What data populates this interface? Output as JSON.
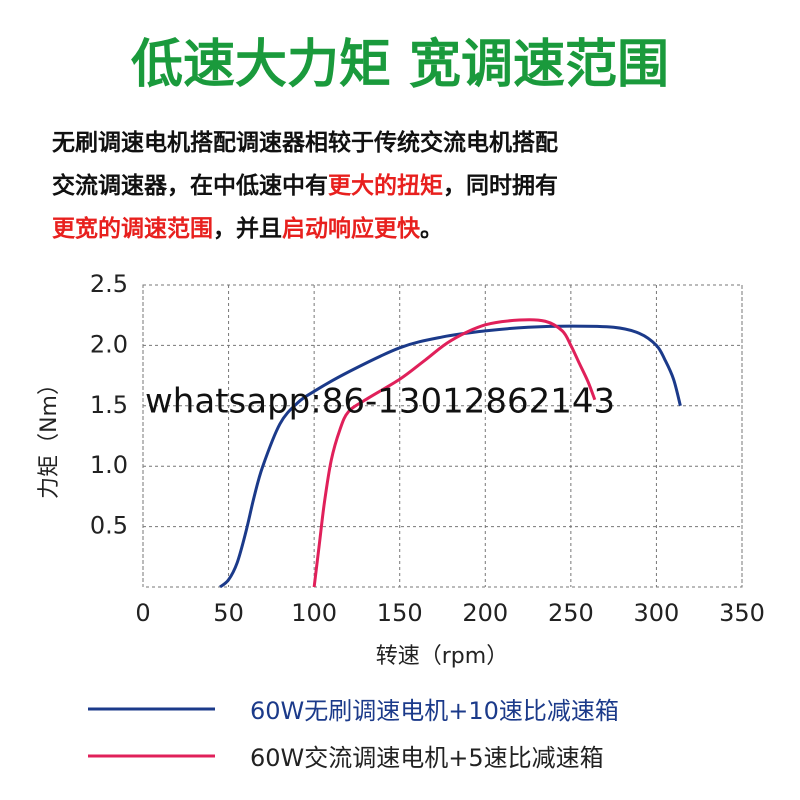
{
  "header": {
    "title": "低速大力矩 宽调速范围",
    "title_color": "#1a9a3c"
  },
  "description": [
    [
      {
        "text": "无刷调速电机搭配调速器相较于传统交流电机搭配",
        "color": "#111111"
      }
    ],
    [
      {
        "text": "交流调速器，在中低速中有",
        "color": "#111111"
      },
      {
        "text": "更大的扭矩",
        "color": "#e8201e"
      },
      {
        "text": "，同时拥有",
        "color": "#111111"
      }
    ],
    [
      {
        "text": "更宽的调速范围",
        "color": "#e8201e"
      },
      {
        "text": "，并且",
        "color": "#111111"
      },
      {
        "text": "启动响应更快",
        "color": "#e8201e"
      },
      {
        "text": "。",
        "color": "#111111"
      }
    ]
  ],
  "watermark": "whatsapp:86-13012862143",
  "chart_data": {
    "type": "line",
    "xlabel": "转速（rpm）",
    "ylabel": "力矩（Nm）",
    "xlim": [
      0,
      350
    ],
    "ylim": [
      0,
      2.5
    ],
    "xticks": [
      0,
      50,
      100,
      150,
      200,
      250,
      300,
      350
    ],
    "yticks": [
      0.5,
      {
        "value": 1,
        "label": "1.0"
      },
      1.5,
      {
        "value": 2,
        "label": "2.0"
      },
      2.5
    ],
    "grid": true,
    "series": [
      {
        "name": "60W无刷调速电机+10速比减速箱",
        "color": "#1b3a8a",
        "label_color": "#1b3a8a",
        "x": [
          45,
          50,
          55,
          60,
          65,
          70,
          80,
          90,
          100,
          120,
          150,
          175,
          200,
          225,
          250,
          275,
          290,
          300,
          305,
          310,
          314
        ],
        "values": [
          0,
          0.06,
          0.2,
          0.45,
          0.75,
          1.0,
          1.35,
          1.52,
          1.62,
          1.78,
          1.98,
          2.07,
          2.12,
          2.15,
          2.16,
          2.15,
          2.1,
          2.0,
          1.88,
          1.72,
          1.5
        ]
      },
      {
        "name": "60W交流调速电机+5速比减速箱",
        "color": "#e0205a",
        "label_color": "#222222",
        "x": [
          100,
          103,
          106,
          110,
          115,
          120,
          130,
          150,
          165,
          180,
          200,
          220,
          235,
          245,
          250,
          255,
          260,
          264
        ],
        "values": [
          0,
          0.35,
          0.7,
          1.05,
          1.3,
          1.45,
          1.55,
          1.72,
          1.88,
          2.04,
          2.17,
          2.21,
          2.2,
          2.12,
          2.0,
          1.85,
          1.7,
          1.55
        ]
      }
    ]
  }
}
